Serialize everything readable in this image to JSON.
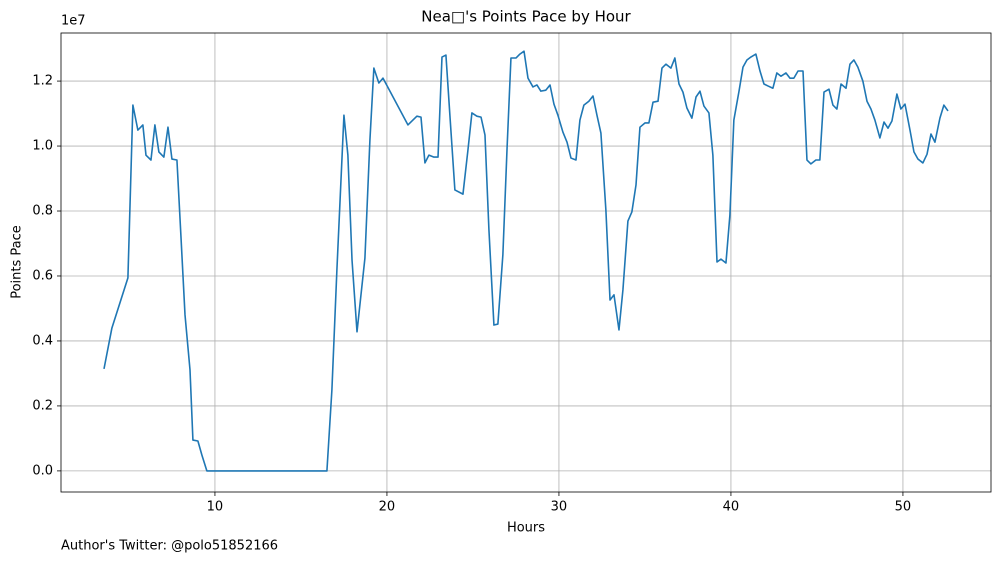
{
  "chart_data": {
    "type": "line",
    "title": "Nea□'s Points Pace by Hour",
    "x_label": "Hours",
    "y_label": "Points Pace",
    "y_offset_label": "1e7",
    "footer": "Author's Twitter: @polo51852166",
    "color": "#1f77b4",
    "grid": true,
    "xlim": [
      1.05,
      55.12
    ],
    "ylim": [
      -0.065,
      1.348
    ],
    "xticks": [
      10,
      20,
      30,
      40,
      50
    ],
    "yticks": [
      {
        "value": 0,
        "label": "0.0"
      },
      0.2,
      0.4,
      0.6,
      0.8,
      {
        "value": 1,
        "label": "1.0"
      },
      1.2
    ],
    "x": [
      3.55,
      4.01,
      4.94,
      5.23,
      5.52,
      5.81,
      5.99,
      6.28,
      6.51,
      6.74,
      7.03,
      7.27,
      7.5,
      7.79,
      8.02,
      8.26,
      8.55,
      8.72,
      9.01,
      9.24,
      9.53,
      16.51,
      16.8,
      17.09,
      17.5,
      17.73,
      17.97,
      18.26,
      18.72,
      19.01,
      19.24,
      19.53,
      19.77,
      21.22,
      21.74,
      21.98,
      22.21,
      22.44,
      22.73,
      22.97,
      23.2,
      23.43,
      23.66,
      23.95,
      24.42,
      24.71,
      24.94,
      25.23,
      25.47,
      25.7,
      25.93,
      26.22,
      26.45,
      26.74,
      26.98,
      27.21,
      27.5,
      27.73,
      27.97,
      28.2,
      28.49,
      28.72,
      28.95,
      29.24,
      29.48,
      29.71,
      29.94,
      30.23,
      30.47,
      30.7,
      30.99,
      31.22,
      31.45,
      31.74,
      31.98,
      32.21,
      32.44,
      32.73,
      32.97,
      33.2,
      33.49,
      33.72,
      34.01,
      34.24,
      34.48,
      34.71,
      35.0,
      35.23,
      35.47,
      35.76,
      35.99,
      36.22,
      36.51,
      36.74,
      36.98,
      37.21,
      37.44,
      37.73,
      37.97,
      38.2,
      38.43,
      38.72,
      38.95,
      39.19,
      39.42,
      39.71,
      39.94,
      40.17,
      40.47,
      40.7,
      40.93,
      41.16,
      41.45,
      41.69,
      41.92,
      42.15,
      42.44,
      42.67,
      42.91,
      43.2,
      43.43,
      43.66,
      43.9,
      44.19,
      44.42,
      44.65,
      44.94,
      45.17,
      45.41,
      45.7,
      45.93,
      46.16,
      46.4,
      46.69,
      46.92,
      47.15,
      47.38,
      47.67,
      47.91,
      48.14,
      48.37,
      48.66,
      48.9,
      49.13,
      49.36,
      49.65,
      49.88,
      50.12,
      50.41,
      50.64,
      50.87,
      51.16,
      51.4,
      51.63,
      51.86,
      52.15,
      52.38,
      52.62
    ],
    "values": [
      0.314,
      0.44,
      0.594,
      1.126,
      1.049,
      1.065,
      0.972,
      0.957,
      1.065,
      0.982,
      0.966,
      1.058,
      0.96,
      0.957,
      0.726,
      0.48,
      0.311,
      0.095,
      0.092,
      0.049,
      0,
      0,
      0.249,
      0.618,
      1.095,
      0.972,
      0.649,
      0.428,
      0.655,
      1.018,
      1.24,
      1.194,
      1.209,
      1.065,
      1.092,
      1.089,
      0.948,
      0.972,
      0.966,
      0.966,
      1.274,
      1.28,
      1.095,
      0.865,
      0.852,
      0.988,
      1.102,
      1.092,
      1.089,
      1.034,
      0.742,
      0.449,
      0.452,
      0.665,
      0.988,
      1.271,
      1.271,
      1.283,
      1.292,
      1.209,
      1.182,
      1.188,
      1.169,
      1.172,
      1.188,
      1.129,
      1.095,
      1.043,
      1.012,
      0.963,
      0.957,
      1.08,
      1.126,
      1.138,
      1.154,
      1.095,
      1.04,
      0.803,
      0.526,
      0.542,
      0.434,
      0.557,
      0.769,
      0.797,
      0.88,
      1.058,
      1.071,
      1.071,
      1.135,
      1.138,
      1.24,
      1.252,
      1.24,
      1.271,
      1.191,
      1.166,
      1.117,
      1.086,
      1.151,
      1.169,
      1.123,
      1.102,
      0.972,
      0.643,
      0.652,
      0.64,
      0.788,
      1.08,
      1.169,
      1.243,
      1.265,
      1.274,
      1.283,
      1.231,
      1.191,
      1.185,
      1.178,
      1.225,
      1.215,
      1.225,
      1.209,
      1.209,
      1.231,
      1.231,
      0.957,
      0.945,
      0.957,
      0.957,
      1.166,
      1.175,
      1.126,
      1.114,
      1.191,
      1.178,
      1.252,
      1.265,
      1.243,
      1.2,
      1.138,
      1.114,
      1.08,
      1.025,
      1.074,
      1.055,
      1.077,
      1.16,
      1.114,
      1.129,
      1.049,
      0.982,
      0.96,
      0.948,
      0.975,
      1.037,
      1.012,
      1.086,
      1.126,
      1.108
    ]
  }
}
